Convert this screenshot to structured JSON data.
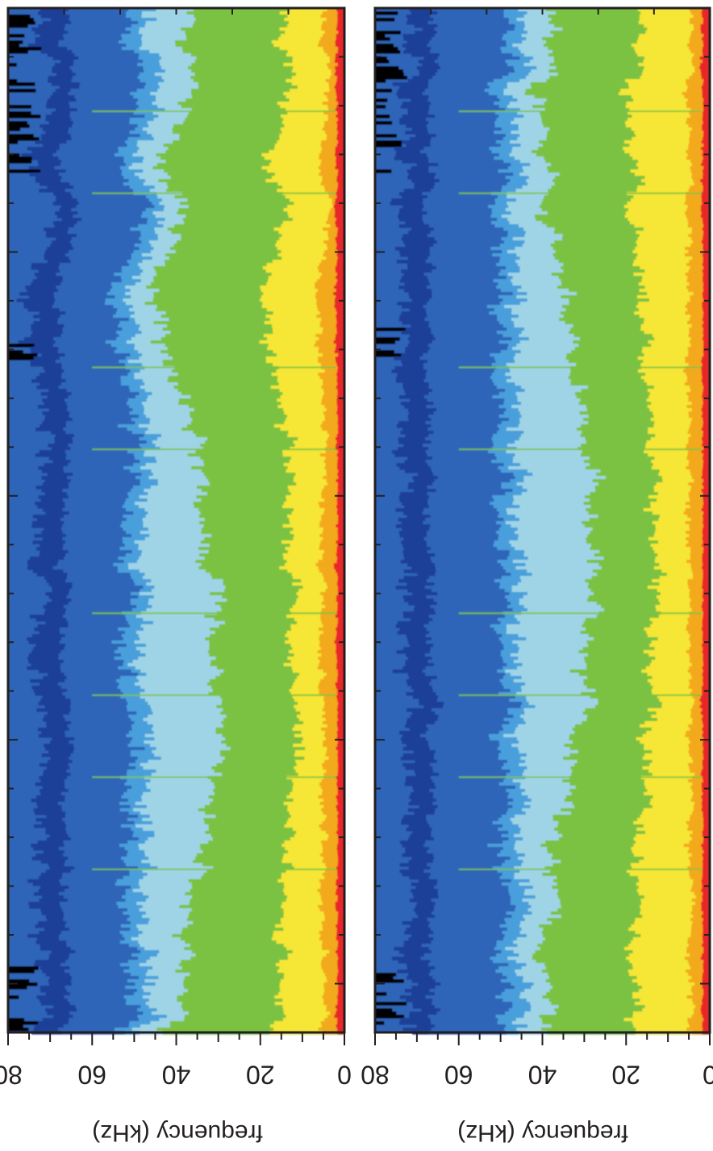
{
  "chart_data": [
    {
      "type": "heatmap",
      "panel": "left",
      "orientation": "rotated-90",
      "xlabel": "frequency  (kHz)",
      "xlim": [
        0,
        80
      ],
      "xticks": [
        0,
        20,
        40,
        60,
        80
      ],
      "colorscale": [
        "#000000",
        "#1f3f98",
        "#2f65b8",
        "#4a9fdb",
        "#9fd4e6",
        "#7cc243",
        "#f6e634",
        "#f3a91f",
        "#e8262a"
      ],
      "profile_kHz": {
        "red_edge": 1.5,
        "orange_edge": 5,
        "yellow_edge": 14,
        "green_edge": 42,
        "lightblue_edge": 51,
        "darkblue_edge": 72
      }
    },
    {
      "type": "heatmap",
      "panel": "right",
      "orientation": "rotated-90",
      "xlabel": "frequency  (kHz)",
      "xlim": [
        0,
        80
      ],
      "xticks": [
        0,
        20,
        40,
        60,
        80
      ],
      "colorscale": [
        "#000000",
        "#1f3f98",
        "#2f65b8",
        "#4a9fdb",
        "#9fd4e6",
        "#7cc243",
        "#f6e634",
        "#f3a91f",
        "#e8262a"
      ],
      "profile_kHz": {
        "red_edge": 1.5,
        "orange_edge": 5,
        "yellow_edge": 16,
        "green_edge": 40,
        "lightblue_edge": 50,
        "darkblue_edge": 73
      }
    }
  ]
}
